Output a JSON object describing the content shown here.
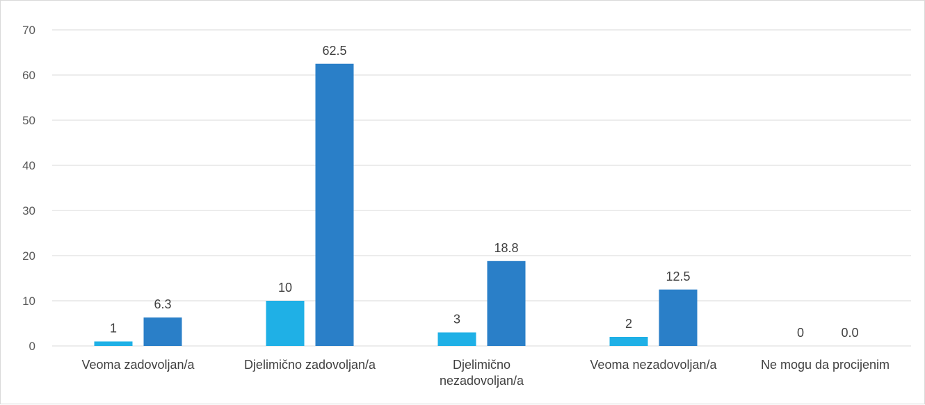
{
  "chart_data": {
    "type": "bar",
    "categories": [
      [
        "Veoma zadovoljan/a"
      ],
      [
        "Djelimično zadovoljan/a"
      ],
      [
        "Djelimično",
        "nezadovoljan/a"
      ],
      [
        "Veoma nezadovoljan/a"
      ],
      [
        "Ne mogu da procijenim"
      ]
    ],
    "series": [
      {
        "values": [
          1,
          10,
          3,
          2,
          0
        ],
        "data_labels": [
          "1",
          "10",
          "3",
          "2",
          "0"
        ],
        "color": "#1fb0e6"
      },
      {
        "values": [
          6.3,
          62.5,
          18.8,
          12.5,
          0.0
        ],
        "data_labels": [
          "6.3",
          "62.5",
          "18.8",
          "12.5",
          "0.0"
        ],
        "color": "#2a7fc8"
      }
    ],
    "ylim": [
      0,
      70
    ],
    "yticks": [
      "0",
      "10",
      "20",
      "30",
      "40",
      "50",
      "60",
      "70"
    ],
    "grid": true,
    "legend": "none",
    "title": "",
    "xlabel": "",
    "ylabel": ""
  }
}
